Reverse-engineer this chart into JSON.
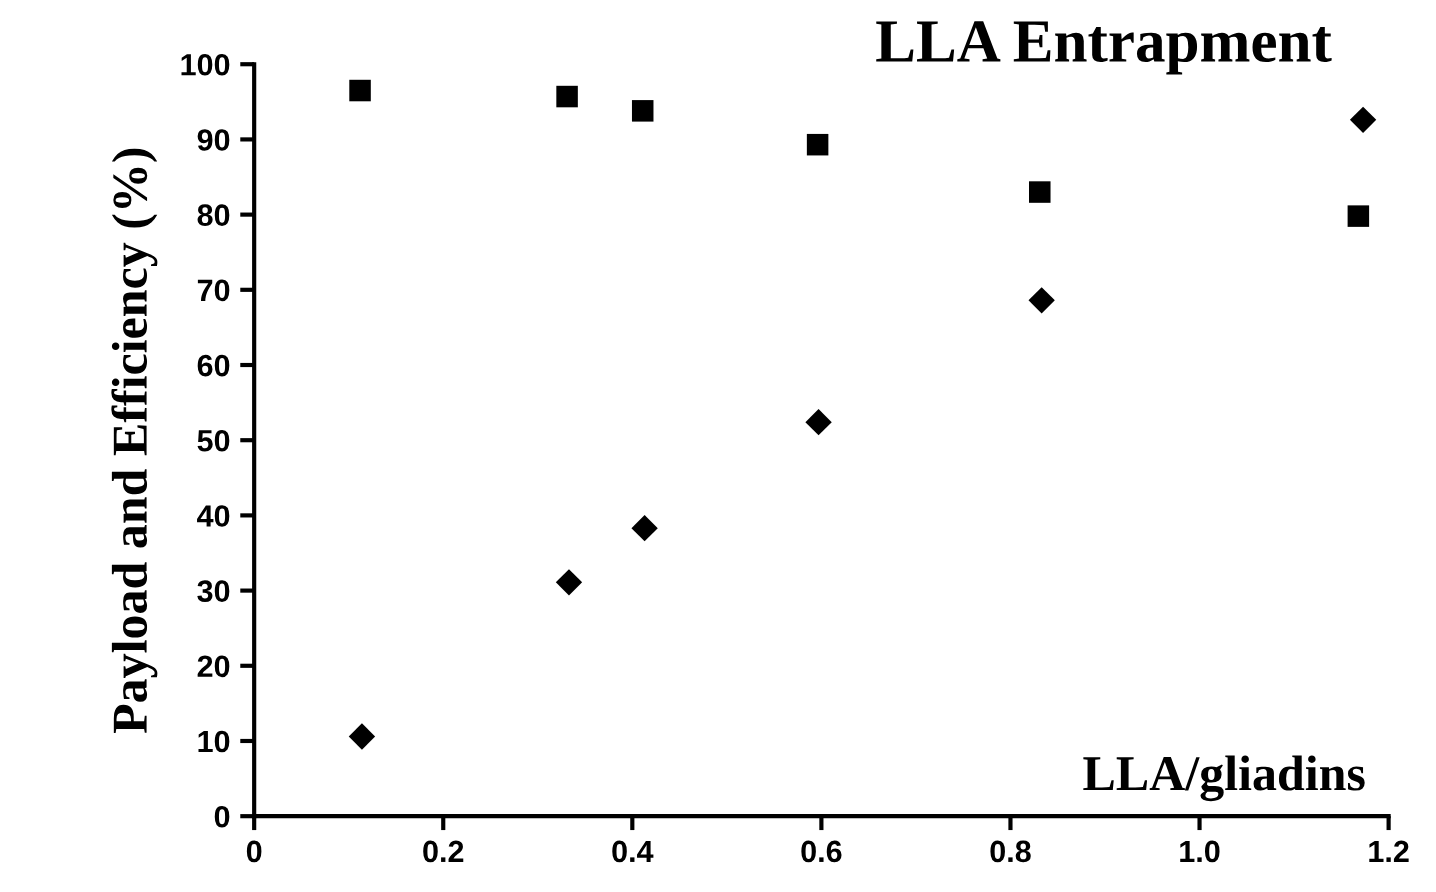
{
  "chart_data": {
    "type": "scatter",
    "title": "LLA Entrapment",
    "xlabel": "LLA/gliadins",
    "ylabel": "Payload and Efficiency (%)",
    "series": [
      {
        "color": "#000000",
        "marker": "square",
        "x": [
          0.112,
          0.331,
          0.411,
          0.596,
          0.831,
          1.168
        ],
        "values": [
          96.5,
          95.7,
          93.8,
          89.3,
          83.0,
          79.8
        ]
      },
      {
        "color": "#000000",
        "marker": "diamond",
        "x": [
          0.114,
          0.333,
          0.413,
          0.597,
          0.833,
          1.173
        ],
        "values": [
          10.6,
          31.1,
          38.3,
          52.4,
          68.6,
          92.6
        ]
      }
    ],
    "xlim": [
      0,
      1.2
    ],
    "xticks": [
      0,
      0.2,
      0.4,
      0.6,
      0.8,
      {
        "value": 1.0,
        "label": "1.0"
      },
      1.2
    ],
    "ylim": [
      0,
      100
    ],
    "yticks": [
      0,
      10,
      20,
      30,
      40,
      50,
      60,
      70,
      80,
      90,
      100
    ],
    "grid": false,
    "legend": false
  }
}
